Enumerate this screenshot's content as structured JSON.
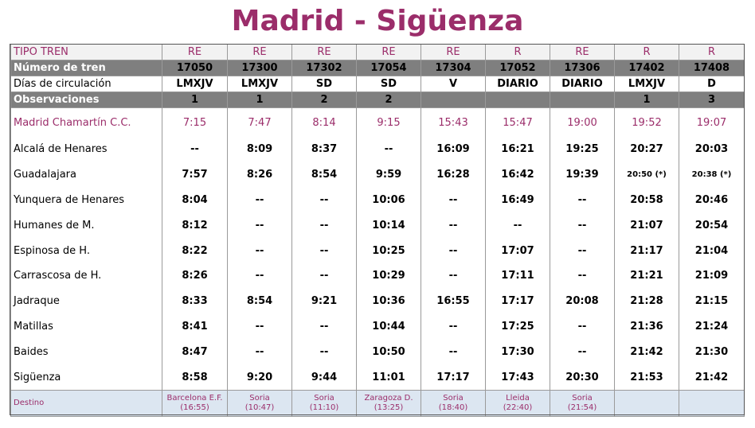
{
  "title": "Madrid - Sigüenza",
  "labels": {
    "tipo": "TIPO TREN",
    "numero": "Número de tren",
    "dias": "Días de circulación",
    "obs": "Observaciones",
    "destino": "Destino"
  },
  "trains": [
    {
      "tipo": "RE",
      "numero": "17050",
      "dias": "LMXJV",
      "obs": "1",
      "destino": "Barcelona E.F.",
      "destino_hora": "(16:55)"
    },
    {
      "tipo": "RE",
      "numero": "17300",
      "dias": "LMXJV",
      "obs": "1",
      "destino": "Soria",
      "destino_hora": "(10:47)"
    },
    {
      "tipo": "RE",
      "numero": "17302",
      "dias": "SD",
      "obs": "2",
      "destino": "Soria",
      "destino_hora": "(11:10)"
    },
    {
      "tipo": "RE",
      "numero": "17054",
      "dias": "SD",
      "obs": "2",
      "destino": "Zaragoza D.",
      "destino_hora": "(13:25)"
    },
    {
      "tipo": "RE",
      "numero": "17304",
      "dias": "V",
      "obs": "",
      "destino": "Soria",
      "destino_hora": "(18:40)"
    },
    {
      "tipo": "R",
      "numero": "17052",
      "dias": "DIARIO",
      "obs": "",
      "destino": "Lleida",
      "destino_hora": "(22:40)"
    },
    {
      "tipo": "RE",
      "numero": "17306",
      "dias": "DIARIO",
      "obs": "",
      "destino": "Soria",
      "destino_hora": "(21:54)"
    },
    {
      "tipo": "R",
      "numero": "17402",
      "dias": "LMXJV",
      "obs": "1",
      "destino": "",
      "destino_hora": ""
    },
    {
      "tipo": "R",
      "numero": "17408",
      "dias": "D",
      "obs": "3",
      "destino": "",
      "destino_hora": ""
    }
  ],
  "stations": [
    {
      "name": "Madrid Chamartín C.C.",
      "times": [
        "7:15",
        "7:47",
        "8:14",
        "9:15",
        "15:43",
        "15:47",
        "19:00",
        "19:52",
        "19:07"
      ]
    },
    {
      "name": "Alcalá de Henares",
      "times": [
        "--",
        "8:09",
        "8:37",
        "--",
        "16:09",
        "16:21",
        "19:25",
        "20:27",
        "20:03"
      ]
    },
    {
      "name": "Guadalajara",
      "times": [
        "7:57",
        "8:26",
        "8:54",
        "9:59",
        "16:28",
        "16:42",
        "19:39",
        "20:50 (*)",
        "20:38 (*)"
      ]
    },
    {
      "name": "Yunquera de Henares",
      "times": [
        "8:04",
        "--",
        "--",
        "10:06",
        "--",
        "16:49",
        "--",
        "20:58",
        "20:46"
      ]
    },
    {
      "name": "Humanes de M.",
      "times": [
        "8:12",
        "--",
        "--",
        "10:14",
        "--",
        "--",
        "--",
        "21:07",
        "20:54"
      ]
    },
    {
      "name": "Espinosa de H.",
      "times": [
        "8:22",
        "--",
        "--",
        "10:25",
        "--",
        "17:07",
        "--",
        "21:17",
        "21:04"
      ]
    },
    {
      "name": "Carrascosa de H.",
      "times": [
        "8:26",
        "--",
        "--",
        "10:29",
        "--",
        "17:11",
        "--",
        "21:21",
        "21:09"
      ]
    },
    {
      "name": "Jadraque",
      "times": [
        "8:33",
        "8:54",
        "9:21",
        "10:36",
        "16:55",
        "17:17",
        "20:08",
        "21:28",
        "21:15"
      ]
    },
    {
      "name": "Matillas",
      "times": [
        "8:41",
        "--",
        "--",
        "10:44",
        "--",
        "17:25",
        "--",
        "21:36",
        "21:24"
      ]
    },
    {
      "name": "Baides",
      "times": [
        "8:47",
        "--",
        "--",
        "10:50",
        "--",
        "17:30",
        "--",
        "21:42",
        "21:30"
      ]
    },
    {
      "name": "Sigüenza",
      "times": [
        "8:58",
        "9:20",
        "9:44",
        "11:01",
        "17:17",
        "17:43",
        "20:30",
        "21:53",
        "21:42"
      ]
    }
  ],
  "colors": {
    "accent": "#9b2d6a",
    "header_gray": "#7f7f7f",
    "destino_bg": "#dce6f1"
  }
}
